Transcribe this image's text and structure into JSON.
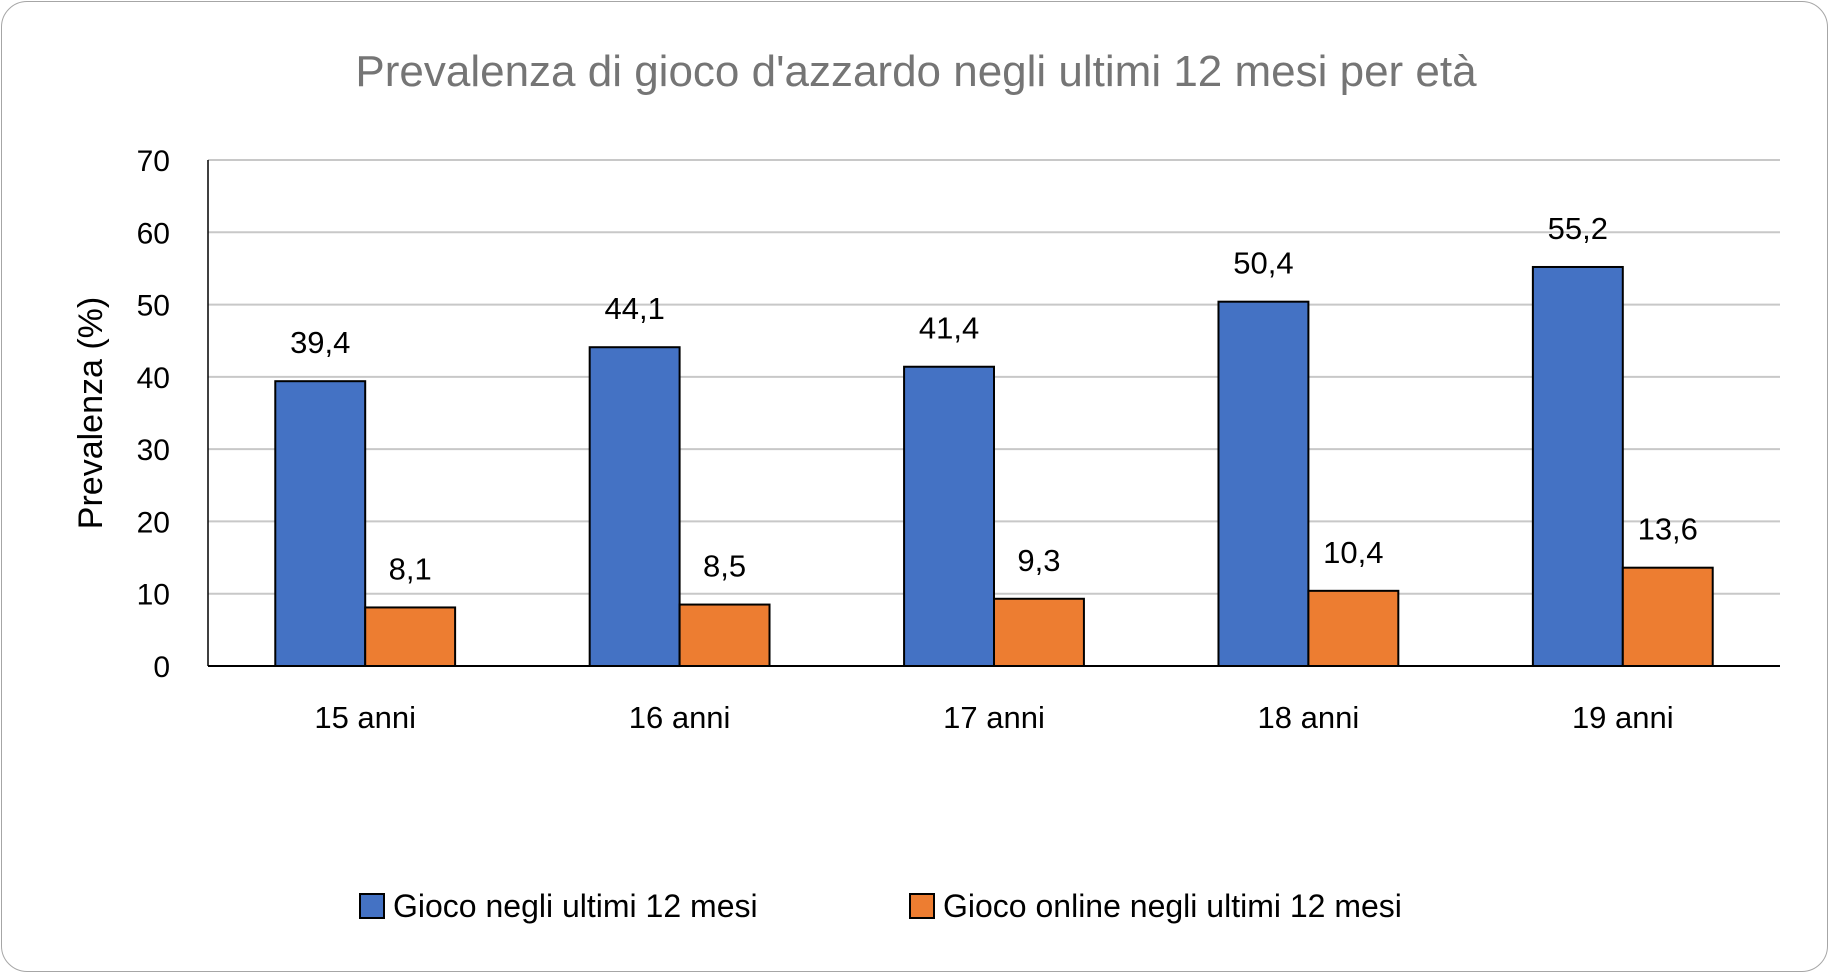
{
  "chart_data": {
    "type": "bar",
    "title": "Prevalenza di gioco d'azzardo negli ultimi 12 mesi per età",
    "xlabel": "",
    "ylabel": "Prevalenza (%)",
    "ylim": [
      0,
      70
    ],
    "yticks": [
      "0",
      "10",
      "20",
      "30",
      "40",
      "50",
      "60",
      "70"
    ],
    "grid": true,
    "legend_position": "bottom",
    "categories": [
      "15 anni",
      "16 anni",
      "17 anni",
      "18 anni",
      "19 anni"
    ],
    "series": [
      {
        "name": "Gioco negli ultimi 12 mesi",
        "color": "#4472c4",
        "values": [
          39.4,
          44.1,
          41.4,
          50.4,
          55.2
        ],
        "labels": [
          "39,4",
          "44,1",
          "41,4",
          "50,4",
          "55,2"
        ]
      },
      {
        "name": "Gioco online negli ultimi 12 mesi",
        "color": "#ed7d31",
        "values": [
          8.1,
          8.5,
          9.3,
          10.4,
          13.6
        ],
        "labels": [
          "8,1",
          "8,5",
          "9,3",
          "10,4",
          "13,6"
        ]
      }
    ]
  }
}
